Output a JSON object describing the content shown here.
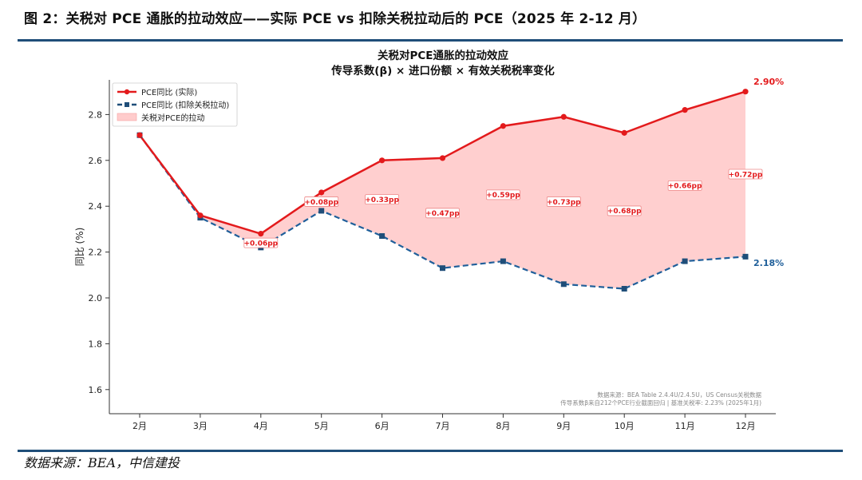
{
  "header": {
    "figure_title": "图 2：关税对 PCE 通胀的拉动效应——实际 PCE vs 扣除关税拉动后的 PCE（2025 年 2-12 月）"
  },
  "footer": {
    "source": "数据来源：BEA，中信建投"
  },
  "colors": {
    "actual": "#e31a1c",
    "ex_tariff": "#1f4e79",
    "fill": "#ffcccc",
    "rule": "#1f4e79"
  },
  "chart_data": {
    "type": "line",
    "title_line1": "关税对PCE通胀的拉动效应",
    "title_line2": "传导系数(β) × 进口份额 × 有效关税税率变化",
    "xlabel": "",
    "ylabel": "同比 (%)",
    "categories": [
      "2月",
      "3月",
      "4月",
      "5月",
      "6月",
      "7月",
      "8月",
      "9月",
      "10月",
      "11月",
      "12月"
    ],
    "ylim": [
      1.5,
      2.95
    ],
    "yticks": [
      "1.6",
      "1.8",
      "2.0",
      "2.2",
      "2.4",
      "2.6",
      "2.8"
    ],
    "series": [
      {
        "name": "PCE同比 (实际)",
        "values": [
          2.71,
          2.36,
          2.28,
          2.46,
          2.6,
          2.61,
          2.75,
          2.79,
          2.72,
          2.82,
          2.9
        ]
      },
      {
        "name": "PCE同比 (扣除关税拉动)",
        "values": [
          2.71,
          2.35,
          2.22,
          2.38,
          2.27,
          2.13,
          2.16,
          2.06,
          2.04,
          2.16,
          2.18
        ]
      }
    ],
    "fill_legend": "关税对PCE的拉动",
    "diff_labels": [
      {
        "index": 2,
        "text": "+0.06pp",
        "y": 2.24
      },
      {
        "index": 3,
        "text": "+0.08pp",
        "y": 2.42
      },
      {
        "index": 4,
        "text": "+0.33pp",
        "y": 2.43
      },
      {
        "index": 5,
        "text": "+0.47pp",
        "y": 2.37
      },
      {
        "index": 6,
        "text": "+0.59pp",
        "y": 2.45
      },
      {
        "index": 7,
        "text": "+0.73pp",
        "y": 2.42
      },
      {
        "index": 8,
        "text": "+0.68pp",
        "y": 2.38
      },
      {
        "index": 9,
        "text": "+0.66pp",
        "y": 2.49
      },
      {
        "index": 10,
        "text": "+0.72pp",
        "y": 2.54
      }
    ],
    "end_labels": {
      "actual": "2.90%",
      "ex_tariff": "2.18%"
    },
    "notes": [
      "数据来源：BEA Table 2.4.4U/2.4.5U，US Census关税数据",
      "传导系数β来自212个PCE行业截面回归 | 基准关税率: 2.23% (2025年1月)"
    ]
  }
}
